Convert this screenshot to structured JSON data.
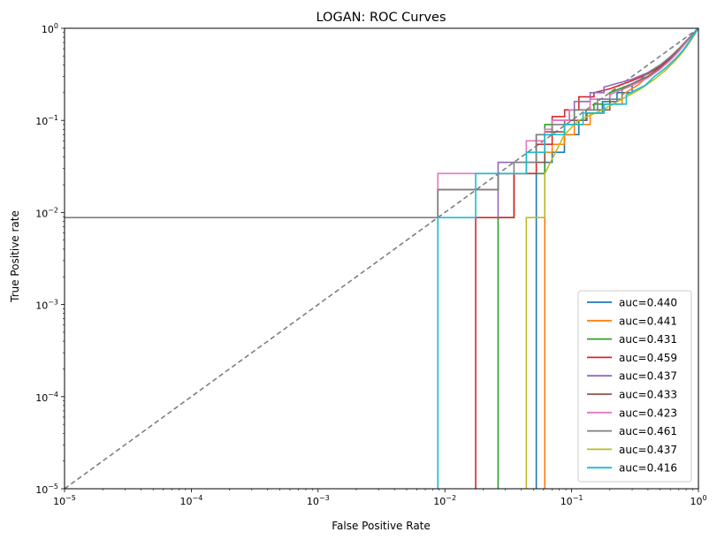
{
  "chart_data": {
    "type": "line",
    "title": "LOGAN: ROC Curves",
    "xlabel": "False Positive Rate",
    "ylabel": "True Positive rate",
    "xscale": "log",
    "yscale": "log",
    "xlim": [
      1e-05,
      1
    ],
    "ylim": [
      1e-05,
      1
    ],
    "grid": false,
    "legend_position": "lower-right",
    "x_ticks": [
      {
        "value": 1e-05,
        "base": "10",
        "exp": "−5"
      },
      {
        "value": 0.0001,
        "base": "10",
        "exp": "−4"
      },
      {
        "value": 0.001,
        "base": "10",
        "exp": "−3"
      },
      {
        "value": 0.01,
        "base": "10",
        "exp": "−2"
      },
      {
        "value": 0.1,
        "base": "10",
        "exp": "−1"
      },
      {
        "value": 1,
        "base": "10",
        "exp": "0"
      }
    ],
    "y_ticks": [
      {
        "value": 1e-05,
        "base": "10",
        "exp": "−5"
      },
      {
        "value": 0.0001,
        "base": "10",
        "exp": "−4"
      },
      {
        "value": 0.001,
        "base": "10",
        "exp": "−3"
      },
      {
        "value": 0.01,
        "base": "10",
        "exp": "−2"
      },
      {
        "value": 0.1,
        "base": "10",
        "exp": "−1"
      },
      {
        "value": 1,
        "base": "10",
        "exp": "0"
      }
    ],
    "reference_line": {
      "x": [
        1e-05,
        1
      ],
      "y": [
        1e-05,
        1
      ],
      "color": "#7f7f7f",
      "style": "dashed"
    },
    "series": [
      {
        "name": "auc=0.440",
        "color": "#1f77b4",
        "x": [
          0.0526,
          0.0526,
          0.0526,
          0.0614,
          0.0614,
          0.0702,
          0.0702,
          0.0877,
          0.0877,
          0.114,
          0.114,
          0.132,
          0.132,
          0.175,
          0.175,
          0.228,
          0.228,
          0.3,
          0.3,
          0.4,
          0.5,
          0.6,
          0.7,
          0.8,
          1.0
        ],
        "y": [
          1e-05,
          0.0088,
          0.0265,
          0.0265,
          0.035,
          0.035,
          0.045,
          0.045,
          0.07,
          0.07,
          0.1,
          0.1,
          0.12,
          0.12,
          0.16,
          0.16,
          0.2,
          0.2,
          0.25,
          0.3,
          0.38,
          0.47,
          0.58,
          0.7,
          1.0
        ]
      },
      {
        "name": "auc=0.441",
        "color": "#ff7f0e",
        "x": [
          0.0614,
          0.0614,
          0.0614,
          0.0702,
          0.0702,
          0.0877,
          0.0877,
          0.105,
          0.105,
          0.14,
          0.14,
          0.18,
          0.18,
          0.25,
          0.25,
          0.33,
          0.4,
          0.5,
          0.6,
          0.7,
          0.8,
          1.0
        ],
        "y": [
          1e-05,
          0.0088,
          0.045,
          0.045,
          0.055,
          0.055,
          0.07,
          0.07,
          0.09,
          0.09,
          0.12,
          0.12,
          0.15,
          0.15,
          0.19,
          0.24,
          0.3,
          0.37,
          0.46,
          0.57,
          0.7,
          1.0
        ]
      },
      {
        "name": "auc=0.431",
        "color": "#2ca02c",
        "x": [
          0.0263,
          0.0263,
          0.0351,
          0.0351,
          0.0614,
          0.0614,
          0.0702,
          0.0702,
          0.096,
          0.096,
          0.15,
          0.15,
          0.2,
          0.2,
          0.3,
          0.4,
          0.5,
          0.6,
          0.7,
          0.8,
          1.0
        ],
        "y": [
          1e-05,
          0.0088,
          0.0088,
          0.0265,
          0.0265,
          0.09,
          0.09,
          0.1,
          0.1,
          0.13,
          0.13,
          0.15,
          0.15,
          0.2,
          0.25,
          0.3,
          0.37,
          0.46,
          0.57,
          0.7,
          1.0
        ]
      },
      {
        "name": "auc=0.459",
        "color": "#d62728",
        "x": [
          0.0175,
          0.0175,
          0.0351,
          0.0351,
          0.0526,
          0.0526,
          0.0702,
          0.0702,
          0.088,
          0.088,
          0.114,
          0.114,
          0.15,
          0.15,
          0.2,
          0.3,
          0.4,
          0.5,
          0.6,
          0.7,
          0.8,
          1.0
        ],
        "y": [
          1e-05,
          0.0088,
          0.0088,
          0.0265,
          0.0265,
          0.055,
          0.055,
          0.11,
          0.11,
          0.13,
          0.13,
          0.18,
          0.18,
          0.2,
          0.22,
          0.27,
          0.32,
          0.39,
          0.48,
          0.59,
          0.72,
          1.0
        ]
      },
      {
        "name": "auc=0.437",
        "color": "#9467bd",
        "x": [
          0.0263,
          0.0263,
          0.0439,
          0.0439,
          0.0526,
          0.0526,
          0.0702,
          0.0702,
          0.105,
          0.105,
          0.14,
          0.14,
          0.18,
          0.18,
          0.3,
          0.4,
          0.5,
          0.6,
          0.7,
          0.8,
          1.0
        ],
        "y": [
          0.0088,
          0.035,
          0.035,
          0.045,
          0.045,
          0.07,
          0.07,
          0.1,
          0.1,
          0.16,
          0.16,
          0.2,
          0.2,
          0.23,
          0.28,
          0.33,
          0.4,
          0.49,
          0.6,
          0.73,
          1.0
        ]
      },
      {
        "name": "auc=0.433",
        "color": "#8c564b",
        "x": [
          0.0088,
          0.0088,
          0.0263,
          0.0263,
          0.0439,
          0.0439,
          0.0614,
          0.0614,
          0.088,
          0.088,
          0.13,
          0.13,
          0.2,
          0.2,
          0.3,
          0.4,
          0.5,
          0.6,
          0.7,
          0.8,
          1.0
        ],
        "y": [
          0.0088,
          0.0177,
          0.0177,
          0.0265,
          0.0265,
          0.035,
          0.035,
          0.075,
          0.075,
          0.1,
          0.1,
          0.13,
          0.13,
          0.19,
          0.24,
          0.3,
          0.37,
          0.46,
          0.57,
          0.7,
          1.0
        ]
      },
      {
        "name": "auc=0.423",
        "color": "#e377c2",
        "x": [
          0.0088,
          0.0088,
          0.0439,
          0.0439,
          0.0614,
          0.0614,
          0.0702,
          0.0702,
          0.096,
          0.096,
          0.14,
          0.14,
          0.2,
          0.2,
          0.3,
          0.4,
          0.5,
          0.6,
          0.7,
          0.8,
          1.0
        ],
        "y": [
          0.0088,
          0.0265,
          0.0265,
          0.06,
          0.06,
          0.08,
          0.08,
          0.1,
          0.1,
          0.13,
          0.13,
          0.17,
          0.17,
          0.19,
          0.24,
          0.29,
          0.36,
          0.45,
          0.56,
          0.7,
          1.0
        ]
      },
      {
        "name": "auc=0.461",
        "color": "#7f7f7f",
        "x": [
          1e-05,
          0.0088,
          0.0088,
          0.0263,
          0.0263,
          0.0351,
          0.0351,
          0.0526,
          0.0526,
          0.0702,
          0.0702,
          0.105,
          0.105,
          0.16,
          0.16,
          0.25,
          0.25,
          0.35,
          0.4,
          0.5,
          0.6,
          0.7,
          0.8,
          1.0
        ],
        "y": [
          0.0088,
          0.0088,
          0.0177,
          0.0177,
          0.0265,
          0.0265,
          0.035,
          0.035,
          0.07,
          0.07,
          0.09,
          0.09,
          0.13,
          0.13,
          0.17,
          0.17,
          0.22,
          0.28,
          0.33,
          0.4,
          0.49,
          0.6,
          0.73,
          1.0
        ]
      },
      {
        "name": "auc=0.437",
        "color": "#bcbd22",
        "x": [
          0.0439,
          0.0439,
          0.0614,
          0.0614,
          0.0877,
          0.0877,
          0.114,
          0.114,
          0.175,
          0.175,
          0.25,
          0.25,
          0.35,
          0.45,
          0.55,
          0.65,
          0.75,
          0.85,
          1.0
        ],
        "y": [
          1e-05,
          0.0088,
          0.0088,
          0.0265,
          0.07,
          0.07,
          0.1,
          0.1,
          0.13,
          0.13,
          0.17,
          0.17,
          0.22,
          0.28,
          0.35,
          0.44,
          0.55,
          0.7,
          1.0
        ]
      },
      {
        "name": "auc=0.416",
        "color": "#17becf",
        "x": [
          0.0088,
          0.0088,
          0.0175,
          0.0175,
          0.0439,
          0.0439,
          0.0614,
          0.0614,
          0.0877,
          0.0877,
          0.123,
          0.123,
          0.18,
          0.18,
          0.27,
          0.27,
          0.38,
          0.45,
          0.55,
          0.65,
          0.75,
          0.85,
          1.0
        ],
        "y": [
          1e-05,
          0.0088,
          0.0088,
          0.0265,
          0.0265,
          0.045,
          0.045,
          0.07,
          0.07,
          0.09,
          0.09,
          0.12,
          0.12,
          0.15,
          0.15,
          0.19,
          0.24,
          0.3,
          0.37,
          0.46,
          0.57,
          0.72,
          1.0
        ]
      }
    ]
  }
}
